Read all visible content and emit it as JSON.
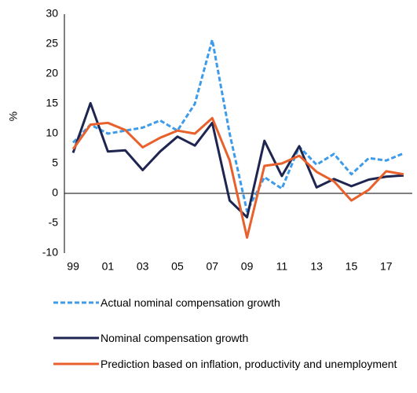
{
  "chart_data": {
    "type": "line",
    "y_label": "%",
    "categories": [
      "99",
      null,
      "01",
      null,
      "03",
      null,
      "05",
      null,
      "07",
      null,
      "09",
      null,
      "11",
      null,
      "13",
      null,
      "15",
      null,
      "17",
      null
    ],
    "series": [
      {
        "name": "Actual nominal compensation growth",
        "color": "#3d9be9",
        "line_style": "dashed",
        "values": [
          8.5,
          11.5,
          10,
          10.5,
          11,
          12.2,
          10.5,
          15,
          25.7,
          10,
          -3,
          2.7,
          0.8,
          7.8,
          4.8,
          6.6,
          3.2,
          5.9,
          5.5,
          6.7
        ]
      },
      {
        "name": "Nominal compensation growth",
        "color": "#1f2551",
        "line_style": "solid",
        "values": [
          6.8,
          15.1,
          7,
          7.2,
          3.9,
          7,
          9.5,
          8,
          11.8,
          -1.2,
          -4,
          8.8,
          2.9,
          7.9,
          1,
          2.4,
          1.2,
          2.3,
          2.8,
          3
        ]
      },
      {
        "name": "Prediction based on inflation, productivity and unemployment",
        "color": "#e8612c",
        "line_style": "solid",
        "values": [
          7.4,
          11.5,
          11.8,
          10.6,
          7.7,
          9.3,
          10.5,
          10,
          12.6,
          5.5,
          -7.4,
          4.6,
          5,
          6.3,
          3.6,
          2,
          -1.2,
          0.6,
          3.7,
          3.2
        ]
      }
    ],
    "ylim": [
      -10,
      30
    ],
    "yticks": [
      -10,
      -5,
      0,
      5,
      10,
      15,
      20,
      25,
      30
    ],
    "grid": false
  }
}
